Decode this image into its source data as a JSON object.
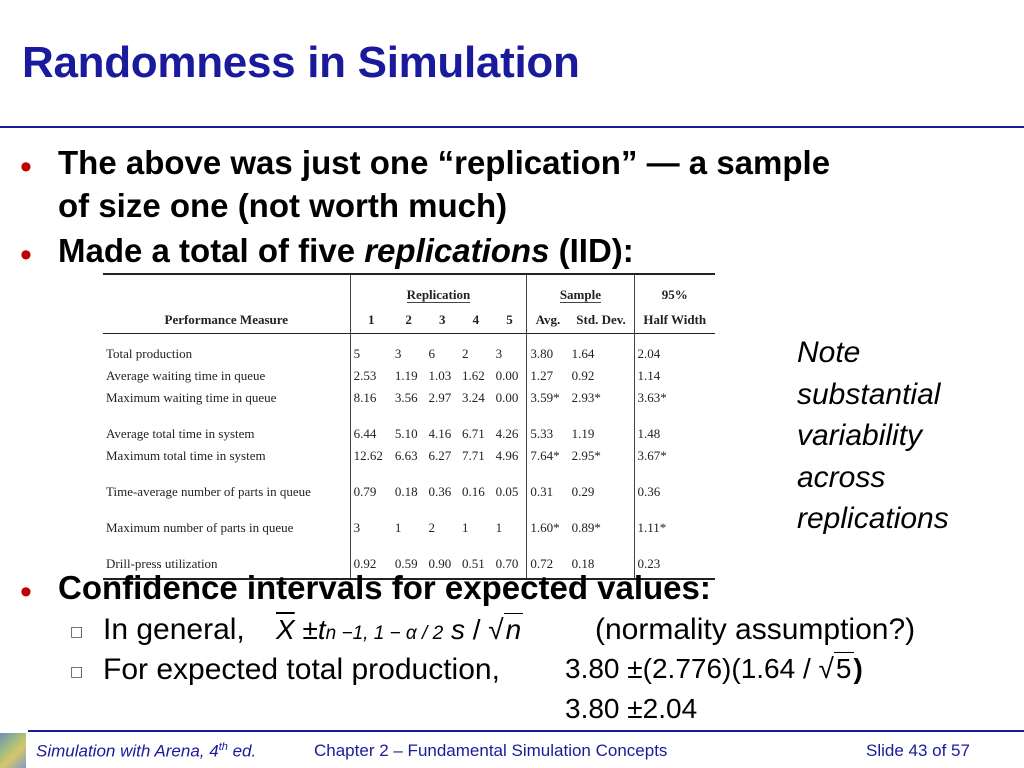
{
  "title": "Randomness in Simulation",
  "bullets": {
    "b1_line1": "The above was just one “replication” — a sample",
    "b1_line2": "of size one (not worth much)",
    "b2_pre": "Made a total of five ",
    "b2_em": "replications",
    "b2_post": " (IID):",
    "b3": "Confidence intervals for expected values:"
  },
  "table": {
    "group_headers": {
      "replication": "Replication",
      "sample": "Sample",
      "pct": "95%"
    },
    "columns": [
      "Performance Measure",
      "1",
      "2",
      "3",
      "4",
      "5",
      "Avg.",
      "Std. Dev.",
      "Half Width"
    ],
    "rows": [
      {
        "measure": "Total production",
        "r1": "5",
        "r2": "3",
        "r3": "6",
        "r4": "2",
        "r5": "3",
        "avg": "3.80",
        "sd": "1.64",
        "hw": "2.04"
      },
      {
        "measure": "Average waiting time in queue",
        "r1": "2.53",
        "r2": "1.19",
        "r3": "1.03",
        "r4": "1.62",
        "r5": "0.00",
        "avg": "1.27",
        "sd": "0.92",
        "hw": "1.14"
      },
      {
        "measure": "Maximum waiting time in queue",
        "r1": "8.16",
        "r2": "3.56",
        "r3": "2.97",
        "r4": "3.24",
        "r5": "0.00",
        "avg": "3.59*",
        "sd": "2.93*",
        "hw": "3.63*"
      },
      {
        "measure": "Average total time in system",
        "r1": "6.44",
        "r2": "5.10",
        "r3": "4.16",
        "r4": "6.71",
        "r5": "4.26",
        "avg": "5.33",
        "sd": "1.19",
        "hw": "1.48"
      },
      {
        "measure": "Maximum total time in system",
        "r1": "12.62",
        "r2": "6.63",
        "r3": "6.27",
        "r4": "7.71",
        "r5": "4.96",
        "avg": "7.64*",
        "sd": "2.95*",
        "hw": "3.67*"
      },
      {
        "measure": "Time-average number of parts in queue",
        "r1": "0.79",
        "r2": "0.18",
        "r3": "0.36",
        "r4": "0.16",
        "r5": "0.05",
        "avg": "0.31",
        "sd": "0.29",
        "hw": "0.36"
      },
      {
        "measure": "Maximum number of parts in queue",
        "r1": "3",
        "r2": "1",
        "r3": "2",
        "r4": "1",
        "r5": "1",
        "avg": "1.60*",
        "sd": "0.89*",
        "hw": "1.11*"
      },
      {
        "measure": "Drill-press utilization",
        "r1": "0.92",
        "r2": "0.59",
        "r3": "0.90",
        "r4": "0.51",
        "r5": "0.70",
        "avg": "0.72",
        "sd": "0.18",
        "hw": "0.23"
      }
    ]
  },
  "note": [
    "Note",
    "substantial",
    "variability",
    "across",
    "replications"
  ],
  "sub_bullets": {
    "general_label": "In general,",
    "general_note": "(normality assumption?)",
    "production_label": "For expected total production,"
  },
  "formulas": {
    "general": {
      "xbar": "X",
      "pm": "±",
      "t": "t",
      "sub": "n −1, 1 − α / 2",
      "s": "s",
      "slash": "/",
      "n": "n"
    },
    "line1": {
      "pre": "3.80",
      "pm": "±",
      "a": "(2.776)(1.64",
      "slash": "/",
      "root": "5",
      "close": ")"
    },
    "line2": {
      "pre": "3.80",
      "pm": "±",
      "val": "2.04"
    }
  },
  "footer": {
    "book": "Simulation with Arena, 4",
    "sup": "th",
    "ed": " ed.",
    "chapter": "Chapter 2 – Fundamental Simulation Concepts",
    "slide": "Slide 43 of 57"
  },
  "colors": {
    "title": "#1a1a9c",
    "bullet": "#c00000"
  }
}
